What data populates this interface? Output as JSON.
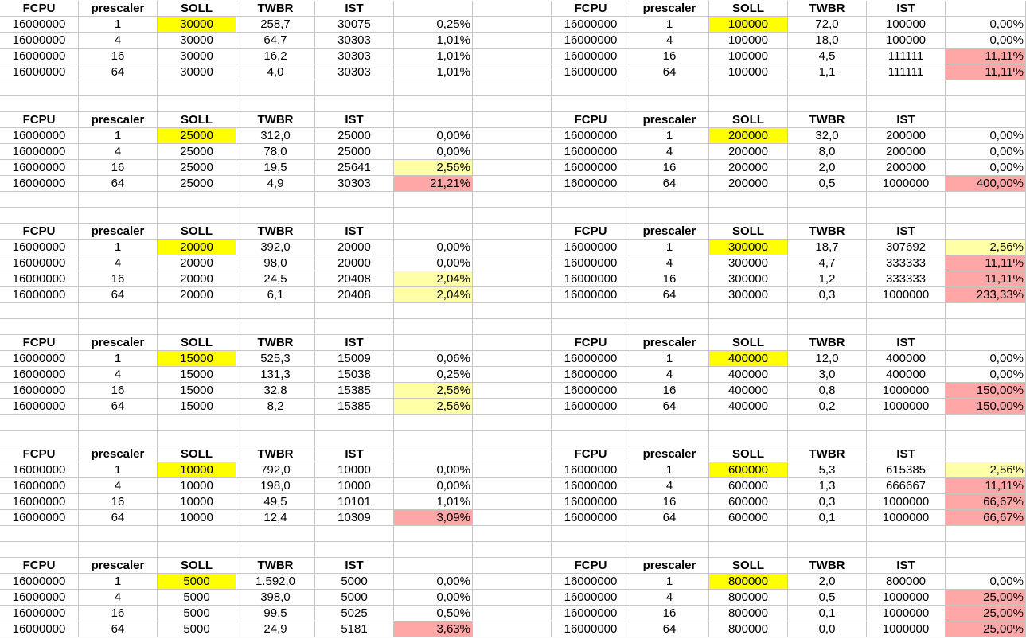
{
  "headers": [
    "FCPU",
    "prescaler",
    "SOLL",
    "TWBR",
    "IST",
    ""
  ],
  "colors": {
    "soll_highlight": "#ffff00",
    "warning": "#ffffa6",
    "error": "#ffa6a6"
  },
  "blocks": [
    {
      "left": {
        "fcpu": "16000000",
        "soll": "30000",
        "rows": [
          {
            "prescaler": "1",
            "twbr": "258,7",
            "ist": "30075",
            "deviation": "0,25%",
            "highlight": ""
          },
          {
            "prescaler": "4",
            "twbr": "64,7",
            "ist": "30303",
            "deviation": "1,01%",
            "highlight": ""
          },
          {
            "prescaler": "16",
            "twbr": "16,2",
            "ist": "30303",
            "deviation": "1,01%",
            "highlight": ""
          },
          {
            "prescaler": "64",
            "twbr": "4,0",
            "ist": "30303",
            "deviation": "1,01%",
            "highlight": ""
          }
        ]
      },
      "right": {
        "fcpu": "16000000",
        "soll": "100000",
        "rows": [
          {
            "prescaler": "1",
            "twbr": "72,0",
            "ist": "100000",
            "deviation": "0,00%",
            "highlight": ""
          },
          {
            "prescaler": "4",
            "twbr": "18,0",
            "ist": "100000",
            "deviation": "0,00%",
            "highlight": ""
          },
          {
            "prescaler": "16",
            "twbr": "4,5",
            "ist": "111111",
            "deviation": "11,11%",
            "highlight": "error"
          },
          {
            "prescaler": "64",
            "twbr": "1,1",
            "ist": "111111",
            "deviation": "11,11%",
            "highlight": "error"
          }
        ]
      }
    },
    {
      "left": {
        "fcpu": "16000000",
        "soll": "25000",
        "rows": [
          {
            "prescaler": "1",
            "twbr": "312,0",
            "ist": "25000",
            "deviation": "0,00%",
            "highlight": ""
          },
          {
            "prescaler": "4",
            "twbr": "78,0",
            "ist": "25000",
            "deviation": "0,00%",
            "highlight": ""
          },
          {
            "prescaler": "16",
            "twbr": "19,5",
            "ist": "25641",
            "deviation": "2,56%",
            "highlight": "warning"
          },
          {
            "prescaler": "64",
            "twbr": "4,9",
            "ist": "30303",
            "deviation": "21,21%",
            "highlight": "error"
          }
        ]
      },
      "right": {
        "fcpu": "16000000",
        "soll": "200000",
        "rows": [
          {
            "prescaler": "1",
            "twbr": "32,0",
            "ist": "200000",
            "deviation": "0,00%",
            "highlight": ""
          },
          {
            "prescaler": "4",
            "twbr": "8,0",
            "ist": "200000",
            "deviation": "0,00%",
            "highlight": ""
          },
          {
            "prescaler": "16",
            "twbr": "2,0",
            "ist": "200000",
            "deviation": "0,00%",
            "highlight": ""
          },
          {
            "prescaler": "64",
            "twbr": "0,5",
            "ist": "1000000",
            "deviation": "400,00%",
            "highlight": "error"
          }
        ]
      }
    },
    {
      "left": {
        "fcpu": "16000000",
        "soll": "20000",
        "rows": [
          {
            "prescaler": "1",
            "twbr": "392,0",
            "ist": "20000",
            "deviation": "0,00%",
            "highlight": ""
          },
          {
            "prescaler": "4",
            "twbr": "98,0",
            "ist": "20000",
            "deviation": "0,00%",
            "highlight": ""
          },
          {
            "prescaler": "16",
            "twbr": "24,5",
            "ist": "20408",
            "deviation": "2,04%",
            "highlight": "warning"
          },
          {
            "prescaler": "64",
            "twbr": "6,1",
            "ist": "20408",
            "deviation": "2,04%",
            "highlight": "warning"
          }
        ]
      },
      "right": {
        "fcpu": "16000000",
        "soll": "300000",
        "rows": [
          {
            "prescaler": "1",
            "twbr": "18,7",
            "ist": "307692",
            "deviation": "2,56%",
            "highlight": "warning"
          },
          {
            "prescaler": "4",
            "twbr": "4,7",
            "ist": "333333",
            "deviation": "11,11%",
            "highlight": "error"
          },
          {
            "prescaler": "16",
            "twbr": "1,2",
            "ist": "333333",
            "deviation": "11,11%",
            "highlight": "error"
          },
          {
            "prescaler": "64",
            "twbr": "0,3",
            "ist": "1000000",
            "deviation": "233,33%",
            "highlight": "error"
          }
        ]
      }
    },
    {
      "left": {
        "fcpu": "16000000",
        "soll": "15000",
        "rows": [
          {
            "prescaler": "1",
            "twbr": "525,3",
            "ist": "15009",
            "deviation": "0,06%",
            "highlight": ""
          },
          {
            "prescaler": "4",
            "twbr": "131,3",
            "ist": "15038",
            "deviation": "0,25%",
            "highlight": ""
          },
          {
            "prescaler": "16",
            "twbr": "32,8",
            "ist": "15385",
            "deviation": "2,56%",
            "highlight": "warning"
          },
          {
            "prescaler": "64",
            "twbr": "8,2",
            "ist": "15385",
            "deviation": "2,56%",
            "highlight": "warning"
          }
        ]
      },
      "right": {
        "fcpu": "16000000",
        "soll": "400000",
        "rows": [
          {
            "prescaler": "1",
            "twbr": "12,0",
            "ist": "400000",
            "deviation": "0,00%",
            "highlight": ""
          },
          {
            "prescaler": "4",
            "twbr": "3,0",
            "ist": "400000",
            "deviation": "0,00%",
            "highlight": ""
          },
          {
            "prescaler": "16",
            "twbr": "0,8",
            "ist": "1000000",
            "deviation": "150,00%",
            "highlight": "error"
          },
          {
            "prescaler": "64",
            "twbr": "0,2",
            "ist": "1000000",
            "deviation": "150,00%",
            "highlight": "error"
          }
        ]
      }
    },
    {
      "left": {
        "fcpu": "16000000",
        "soll": "10000",
        "rows": [
          {
            "prescaler": "1",
            "twbr": "792,0",
            "ist": "10000",
            "deviation": "0,00%",
            "highlight": ""
          },
          {
            "prescaler": "4",
            "twbr": "198,0",
            "ist": "10000",
            "deviation": "0,00%",
            "highlight": ""
          },
          {
            "prescaler": "16",
            "twbr": "49,5",
            "ist": "10101",
            "deviation": "1,01%",
            "highlight": ""
          },
          {
            "prescaler": "64",
            "twbr": "12,4",
            "ist": "10309",
            "deviation": "3,09%",
            "highlight": "error"
          }
        ]
      },
      "right": {
        "fcpu": "16000000",
        "soll": "600000",
        "rows": [
          {
            "prescaler": "1",
            "twbr": "5,3",
            "ist": "615385",
            "deviation": "2,56%",
            "highlight": "warning"
          },
          {
            "prescaler": "4",
            "twbr": "1,3",
            "ist": "666667",
            "deviation": "11,11%",
            "highlight": "error"
          },
          {
            "prescaler": "16",
            "twbr": "0,3",
            "ist": "1000000",
            "deviation": "66,67%",
            "highlight": "error"
          },
          {
            "prescaler": "64",
            "twbr": "0,1",
            "ist": "1000000",
            "deviation": "66,67%",
            "highlight": "error"
          }
        ]
      }
    },
    {
      "left": {
        "fcpu": "16000000",
        "soll": "5000",
        "rows": [
          {
            "prescaler": "1",
            "twbr": "1.592,0",
            "ist": "5000",
            "deviation": "0,00%",
            "highlight": ""
          },
          {
            "prescaler": "4",
            "twbr": "398,0",
            "ist": "5000",
            "deviation": "0,00%",
            "highlight": ""
          },
          {
            "prescaler": "16",
            "twbr": "99,5",
            "ist": "5025",
            "deviation": "0,50%",
            "highlight": ""
          },
          {
            "prescaler": "64",
            "twbr": "24,9",
            "ist": "5181",
            "deviation": "3,63%",
            "highlight": "error"
          }
        ]
      },
      "right": {
        "fcpu": "16000000",
        "soll": "800000",
        "rows": [
          {
            "prescaler": "1",
            "twbr": "2,0",
            "ist": "800000",
            "deviation": "0,00%",
            "highlight": ""
          },
          {
            "prescaler": "4",
            "twbr": "0,5",
            "ist": "1000000",
            "deviation": "25,00%",
            "highlight": "error"
          },
          {
            "prescaler": "16",
            "twbr": "0,1",
            "ist": "1000000",
            "deviation": "25,00%",
            "highlight": "error"
          },
          {
            "prescaler": "64",
            "twbr": "0,0",
            "ist": "1000000",
            "deviation": "25,00%",
            "highlight": "error"
          }
        ]
      }
    }
  ]
}
